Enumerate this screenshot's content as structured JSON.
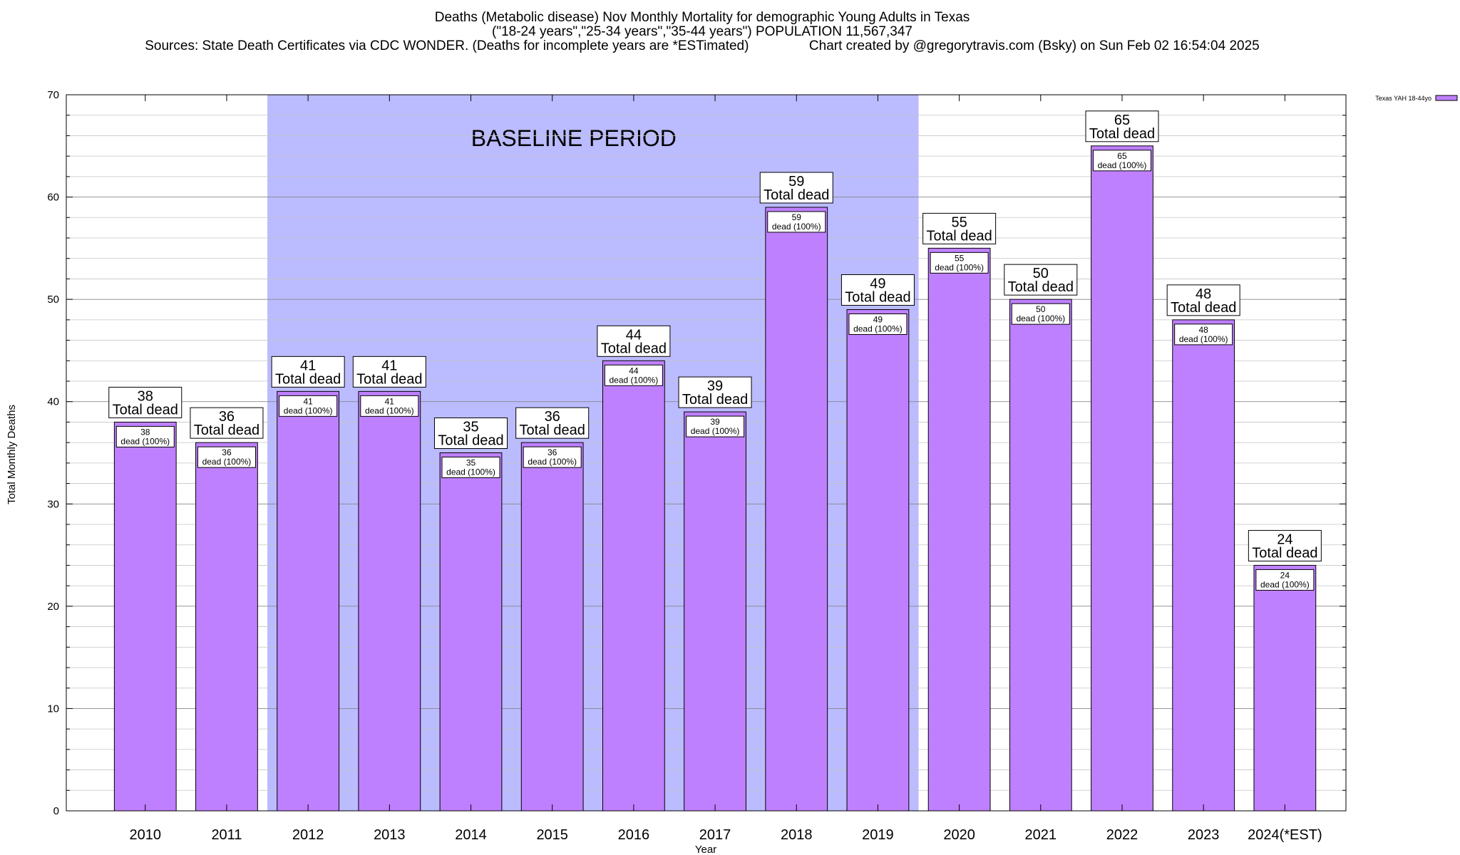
{
  "chart_data": {
    "type": "bar",
    "title_lines": [
      "Deaths (Metabolic disease) Nov Monthly Mortality for demographic Young Adults in Texas",
      "(\"18-24 years\",\"25-34 years\",\"35-44 years\") POPULATION 11,567,347",
      "Sources: State Death Certificates via CDC WONDER. (Deaths for incomplete years are *ESTimated)                Chart created by @gregorytravis.com (Bsky) on Sun Feb 02 16:54:04 2025"
    ],
    "xlabel": "Year",
    "ylabel": "Total Monthly Deaths",
    "ylim": [
      0,
      70
    ],
    "y_ticks": [
      0,
      10,
      20,
      30,
      40,
      50,
      60,
      70
    ],
    "grid": true,
    "legend_position": "top-right",
    "categories": [
      "2010",
      "2011",
      "2012",
      "2013",
      "2014",
      "2015",
      "2016",
      "2017",
      "2018",
      "2019",
      "2020",
      "2021",
      "2022",
      "2023",
      "2024(*EST)"
    ],
    "series": [
      {
        "name": "Texas YAH 18-44yo",
        "color": "#bf80ff",
        "values": [
          38,
          36,
          41,
          41,
          35,
          36,
          44,
          39,
          59,
          49,
          55,
          50,
          65,
          48,
          24
        ]
      }
    ],
    "total_label_suffix": "Total dead",
    "inner_label_suffix": "dead (100%)",
    "baseline_period": {
      "label": "BASELINE PERIOD",
      "start_category": "2012",
      "end_category": "2019",
      "color": "#bbbbff"
    }
  }
}
